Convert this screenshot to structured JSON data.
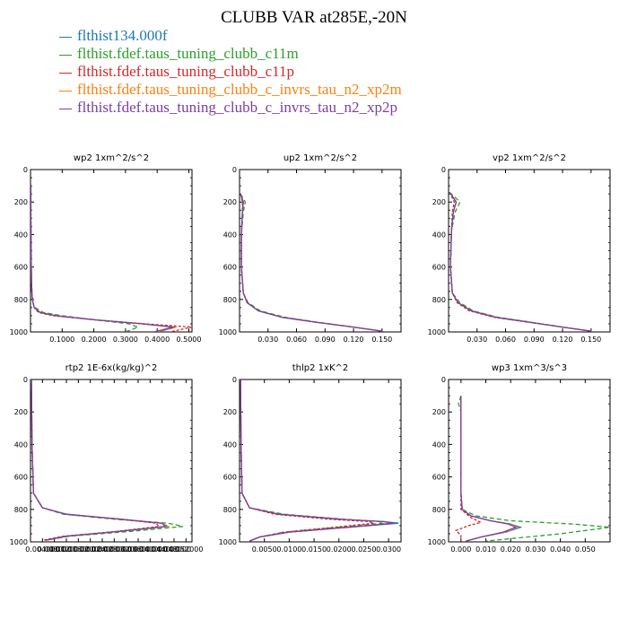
{
  "title": "CLUBB VAR at285E,-20N",
  "legend": [
    {
      "label": "flthist134.000f",
      "color": "#1f77b4",
      "dash": "solid"
    },
    {
      "label": "flthist.fdef.taus_tuning_clubb_c11m",
      "color": "#2ca02c",
      "dash": "dashed"
    },
    {
      "label": "flthist.fdef.taus_tuning_clubb_c11p",
      "color": "#d62728",
      "dash": "dashed"
    },
    {
      "label": "flthist.fdef.taus_tuning_clubb_c_invrs_tau_n2_xp2m",
      "color": "#ff7f0e",
      "dash": "dashed"
    },
    {
      "label": "flthist.fdef.taus_tuning_clubb_c_invrs_tau_n2_xp2p",
      "color": "#7b3fa0",
      "dash": "solid"
    }
  ],
  "chart_data": [
    {
      "type": "line",
      "title": "wp2  1xm^2/s^2",
      "ylim": [
        1000,
        0
      ],
      "yticks": [
        "0",
        "200",
        "400",
        "600",
        "800",
        "1000"
      ],
      "xlim": [
        0,
        0.51
      ],
      "xticks": [
        0.1,
        0.2,
        0.3,
        0.4,
        0.5
      ],
      "xticklabels": [
        "0.1000",
        "0.2000",
        "0.3000",
        "0.4000",
        "0.5000"
      ],
      "series": [
        {
          "x": [
            0.001,
            0.001,
            0.002,
            0.003,
            0.005,
            0.008,
            0.012,
            0.03,
            0.08,
            0.2,
            0.35,
            0.46,
            0.4
          ],
          "y": [
            100,
            300,
            500,
            700,
            780,
            820,
            850,
            880,
            900,
            925,
            950,
            970,
            1000
          ]
        },
        {
          "x": [
            0.001,
            0.001,
            0.002,
            0.003,
            0.005,
            0.008,
            0.015,
            0.04,
            0.1,
            0.2,
            0.31,
            0.34,
            0.3
          ],
          "y": [
            100,
            300,
            500,
            700,
            780,
            820,
            850,
            880,
            900,
            925,
            950,
            970,
            1000
          ]
        },
        {
          "x": [
            0.001,
            0.001,
            0.002,
            0.003,
            0.005,
            0.008,
            0.012,
            0.025,
            0.07,
            0.2,
            0.36,
            0.51,
            0.44
          ],
          "y": [
            100,
            300,
            500,
            700,
            780,
            820,
            850,
            880,
            900,
            925,
            950,
            970,
            1000
          ]
        },
        {
          "x": [
            0.001,
            0.001,
            0.002,
            0.003,
            0.005,
            0.008,
            0.012,
            0.03,
            0.08,
            0.2,
            0.35,
            0.46,
            0.4
          ],
          "y": [
            100,
            300,
            500,
            700,
            780,
            820,
            850,
            880,
            900,
            925,
            950,
            970,
            1000
          ]
        },
        {
          "x": [
            0.001,
            0.001,
            0.002,
            0.003,
            0.005,
            0.008,
            0.012,
            0.03,
            0.08,
            0.2,
            0.35,
            0.45,
            0.39
          ],
          "y": [
            100,
            300,
            500,
            700,
            780,
            820,
            850,
            880,
            900,
            925,
            950,
            970,
            1000
          ]
        }
      ]
    },
    {
      "type": "line",
      "title": "up2  1xm^2/s^2",
      "ylim": [
        1000,
        0
      ],
      "yticks": [
        "0",
        "200",
        "400",
        "600",
        "800",
        "1000"
      ],
      "xlim": [
        0,
        0.17
      ],
      "xticks": [
        0.03,
        0.06,
        0.09,
        0.12,
        0.15
      ],
      "xticklabels": [
        "0.030",
        "0.060",
        "0.090",
        "0.120",
        "0.150"
      ],
      "series": [
        {
          "x": [
            0.001,
            0.004,
            0.003,
            0.002,
            0.002,
            0.004,
            0.008,
            0.02,
            0.045,
            0.08,
            0.12,
            0.15
          ],
          "y": [
            150,
            200,
            260,
            400,
            600,
            760,
            820,
            870,
            910,
            940,
            970,
            995
          ]
        },
        {
          "x": [
            0.001,
            0.006,
            0.004,
            0.002,
            0.002,
            0.004,
            0.009,
            0.022,
            0.048,
            0.082,
            0.12,
            0.15
          ],
          "y": [
            150,
            200,
            260,
            400,
            600,
            760,
            820,
            870,
            910,
            940,
            970,
            995
          ]
        },
        {
          "x": [
            0.001,
            0.003,
            0.003,
            0.002,
            0.002,
            0.004,
            0.008,
            0.02,
            0.045,
            0.08,
            0.12,
            0.15
          ],
          "y": [
            150,
            200,
            260,
            400,
            600,
            760,
            820,
            870,
            910,
            940,
            970,
            995
          ]
        },
        {
          "x": [
            0.001,
            0.004,
            0.003,
            0.002,
            0.002,
            0.004,
            0.008,
            0.02,
            0.045,
            0.08,
            0.12,
            0.15
          ],
          "y": [
            150,
            200,
            260,
            400,
            600,
            760,
            820,
            870,
            910,
            940,
            970,
            995
          ]
        },
        {
          "x": [
            0.001,
            0.004,
            0.003,
            0.002,
            0.002,
            0.004,
            0.008,
            0.02,
            0.045,
            0.08,
            0.12,
            0.15
          ],
          "y": [
            150,
            200,
            260,
            400,
            600,
            760,
            820,
            870,
            910,
            940,
            970,
            995
          ]
        }
      ]
    },
    {
      "type": "line",
      "title": "vp2  1xm^2/s^2",
      "ylim": [
        1000,
        0
      ],
      "yticks": [
        "0",
        "200",
        "400",
        "600",
        "800",
        "1000"
      ],
      "xlim": [
        0,
        0.17
      ],
      "xticks": [
        0.03,
        0.06,
        0.09,
        0.12,
        0.15
      ],
      "xticklabels": [
        "0.030",
        "0.060",
        "0.090",
        "0.120",
        "0.150"
      ],
      "series": [
        {
          "x": [
            0.001,
            0.008,
            0.005,
            0.003,
            0.002,
            0.004,
            0.01,
            0.024,
            0.05,
            0.085,
            0.12,
            0.15
          ],
          "y": [
            140,
            200,
            260,
            380,
            600,
            760,
            820,
            870,
            910,
            940,
            970,
            995
          ]
        },
        {
          "x": [
            0.001,
            0.012,
            0.007,
            0.003,
            0.002,
            0.004,
            0.012,
            0.026,
            0.052,
            0.087,
            0.12,
            0.15
          ],
          "y": [
            140,
            200,
            260,
            380,
            600,
            760,
            820,
            870,
            910,
            940,
            970,
            995
          ]
        },
        {
          "x": [
            0.001,
            0.006,
            0.004,
            0.003,
            0.002,
            0.004,
            0.009,
            0.022,
            0.048,
            0.083,
            0.12,
            0.15
          ],
          "y": [
            140,
            200,
            260,
            380,
            600,
            760,
            820,
            870,
            910,
            940,
            970,
            995
          ]
        },
        {
          "x": [
            0.001,
            0.008,
            0.005,
            0.003,
            0.002,
            0.004,
            0.01,
            0.024,
            0.05,
            0.085,
            0.12,
            0.15
          ],
          "y": [
            140,
            200,
            260,
            380,
            600,
            760,
            820,
            870,
            910,
            940,
            970,
            995
          ]
        },
        {
          "x": [
            0.001,
            0.008,
            0.005,
            0.003,
            0.002,
            0.004,
            0.01,
            0.024,
            0.05,
            0.085,
            0.12,
            0.15
          ],
          "y": [
            140,
            200,
            260,
            380,
            600,
            760,
            820,
            870,
            910,
            940,
            970,
            995
          ]
        }
      ]
    },
    {
      "type": "line",
      "title": "rtp2  1E-6x(kg/kg)^2",
      "ylim": [
        1000,
        0
      ],
      "yticks": [
        "0",
        "200",
        "400",
        "600",
        "800",
        "1000"
      ],
      "xlim": [
        0,
        0.054
      ],
      "xticks": [
        0.004,
        0.008,
        0.012,
        0.016,
        0.02,
        0.024,
        0.028,
        0.032,
        0.036,
        0.04,
        0.044,
        0.048,
        0.052
      ],
      "xticklabels": [
        "0.004000",
        "0.008000",
        "0.012000",
        "0.016000",
        "0.020000",
        "0.024000",
        "0.028000",
        "0.032000",
        "0.036000",
        "0.040000",
        "0.044000",
        "0.048000",
        "0.052000"
      ],
      "series": [
        {
          "x": [
            0.0003,
            0.0005,
            0.001,
            0.004,
            0.012,
            0.03,
            0.044,
            0.046,
            0.03,
            0.012,
            0.005
          ],
          "y": [
            0,
            400,
            700,
            790,
            830,
            860,
            885,
            905,
            935,
            965,
            990
          ]
        },
        {
          "x": [
            0.0003,
            0.0005,
            0.001,
            0.004,
            0.011,
            0.028,
            0.046,
            0.051,
            0.034,
            0.013,
            0.005
          ],
          "y": [
            0,
            400,
            700,
            790,
            830,
            860,
            885,
            905,
            935,
            965,
            990
          ]
        },
        {
          "x": [
            0.0003,
            0.0005,
            0.001,
            0.004,
            0.012,
            0.03,
            0.042,
            0.043,
            0.029,
            0.011,
            0.004
          ],
          "y": [
            0,
            400,
            700,
            790,
            830,
            860,
            885,
            905,
            935,
            965,
            990
          ]
        },
        {
          "x": [
            0.0003,
            0.0005,
            0.001,
            0.004,
            0.012,
            0.03,
            0.044,
            0.046,
            0.03,
            0.012,
            0.005
          ],
          "y": [
            0,
            400,
            700,
            790,
            830,
            860,
            885,
            905,
            935,
            965,
            990
          ]
        },
        {
          "x": [
            0.0003,
            0.0005,
            0.001,
            0.004,
            0.012,
            0.03,
            0.044,
            0.045,
            0.03,
            0.012,
            0.005
          ],
          "y": [
            0,
            400,
            700,
            790,
            830,
            860,
            885,
            905,
            935,
            965,
            990
          ]
        }
      ]
    },
    {
      "type": "line",
      "title": "thlp2  1xK^2",
      "ylim": [
        1000,
        0
      ],
      "yticks": [
        "0",
        "200",
        "400",
        "600",
        "800",
        "1000"
      ],
      "xlim": [
        0,
        0.0325
      ],
      "xticks": [
        0.005,
        0.01,
        0.015,
        0.02,
        0.025,
        0.03
      ],
      "xticklabels": [
        "0.0050",
        "0.0100",
        "0.0150",
        "0.0200",
        "0.0250",
        "0.0300"
      ],
      "series": [
        {
          "x": [
            0.0002,
            0.0003,
            0.0005,
            0.002,
            0.008,
            0.02,
            0.029,
            0.032,
            0.022,
            0.01,
            0.004,
            0.002
          ],
          "y": [
            0,
            400,
            700,
            790,
            830,
            860,
            875,
            885,
            910,
            940,
            970,
            995
          ]
        },
        {
          "x": [
            0.0002,
            0.0003,
            0.0005,
            0.002,
            0.009,
            0.021,
            0.028,
            0.029,
            0.02,
            0.009,
            0.004,
            0.002
          ],
          "y": [
            0,
            400,
            700,
            790,
            830,
            860,
            875,
            885,
            910,
            940,
            970,
            995
          ]
        },
        {
          "x": [
            0.0002,
            0.0003,
            0.0005,
            0.002,
            0.007,
            0.018,
            0.026,
            0.027,
            0.019,
            0.009,
            0.004,
            0.002
          ],
          "y": [
            0,
            400,
            700,
            790,
            830,
            860,
            875,
            885,
            910,
            940,
            970,
            995
          ]
        },
        {
          "x": [
            0.0002,
            0.0003,
            0.0005,
            0.002,
            0.008,
            0.02,
            0.029,
            0.031,
            0.022,
            0.01,
            0.004,
            0.002
          ],
          "y": [
            0,
            400,
            700,
            790,
            830,
            860,
            875,
            885,
            910,
            940,
            970,
            995
          ]
        },
        {
          "x": [
            0.0002,
            0.0003,
            0.0005,
            0.002,
            0.008,
            0.02,
            0.029,
            0.031,
            0.022,
            0.01,
            0.004,
            0.002
          ],
          "y": [
            0,
            400,
            700,
            790,
            830,
            860,
            875,
            885,
            910,
            940,
            970,
            995
          ]
        }
      ]
    },
    {
      "type": "line",
      "title": "wp3  1xm^3/s^3",
      "ylim": [
        1000,
        0
      ],
      "yticks": [
        "0",
        "200",
        "400",
        "600",
        "800",
        "1000"
      ],
      "xlim": [
        -0.005,
        0.06
      ],
      "xticks": [
        0,
        0.01,
        0.02,
        0.03,
        0.04,
        0.05
      ],
      "xticklabels": [
        "0.000",
        "0.010",
        "0.020",
        "0.030",
        "0.040",
        "0.050"
      ],
      "series": [
        {
          "x": [
            0,
            0,
            0.0005,
            0.004,
            0.012,
            0.02,
            0.024,
            0.018,
            0.008,
            0.002
          ],
          "y": [
            100,
            700,
            800,
            840,
            870,
            890,
            910,
            940,
            970,
            995
          ]
        },
        {
          "x": [
            0,
            -0.001,
            0,
            0,
            0.0005,
            0.006,
            0.02,
            0.045,
            0.06,
            0.04,
            0.01
          ],
          "y": [
            100,
            150,
            200,
            700,
            800,
            840,
            870,
            890,
            910,
            950,
            995
          ]
        },
        {
          "x": [
            0,
            0,
            0,
            0.004,
            0.008,
            0.003,
            -0.002,
            0,
            0
          ],
          "y": [
            100,
            700,
            800,
            850,
            880,
            900,
            930,
            960,
            995
          ]
        },
        {
          "x": [
            0,
            0,
            0.0005,
            0.004,
            0.012,
            0.02,
            0.023,
            0.018,
            0.008,
            0.002
          ],
          "y": [
            100,
            700,
            800,
            840,
            870,
            890,
            910,
            940,
            970,
            995
          ]
        },
        {
          "x": [
            0,
            0,
            0.0005,
            0.004,
            0.012,
            0.019,
            0.022,
            0.017,
            0.008,
            0.002
          ],
          "y": [
            100,
            700,
            800,
            840,
            870,
            890,
            910,
            940,
            970,
            995
          ]
        }
      ]
    }
  ]
}
